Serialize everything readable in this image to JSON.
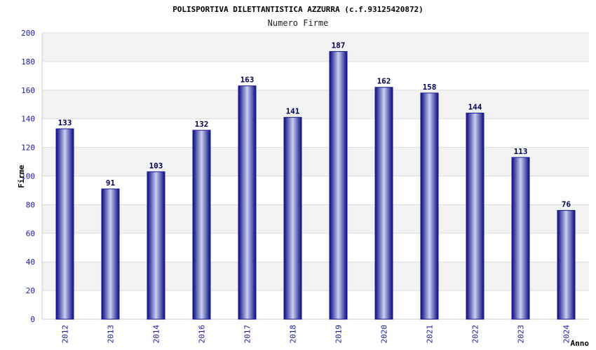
{
  "chart_data": {
    "type": "bar",
    "title": "POLISPORTIVA DILETTANTISTICA AZZURRA (c.f.93125420872)",
    "subtitle": "Numero Firme",
    "xlabel": "Anno",
    "ylabel": "Firme",
    "categories": [
      "2012",
      "2013",
      "2014",
      "2016",
      "2017",
      "2018",
      "2019",
      "2020",
      "2021",
      "2022",
      "2023",
      "2024"
    ],
    "values": [
      133,
      91,
      103,
      132,
      163,
      141,
      187,
      162,
      158,
      144,
      113,
      76
    ],
    "ylim": [
      0,
      200
    ],
    "yticks": [
      0,
      20,
      40,
      60,
      80,
      100,
      120,
      140,
      160,
      180,
      200
    ],
    "grid": true,
    "bar_color": "#1a1a9a",
    "band_color": "#f2f2f2"
  }
}
